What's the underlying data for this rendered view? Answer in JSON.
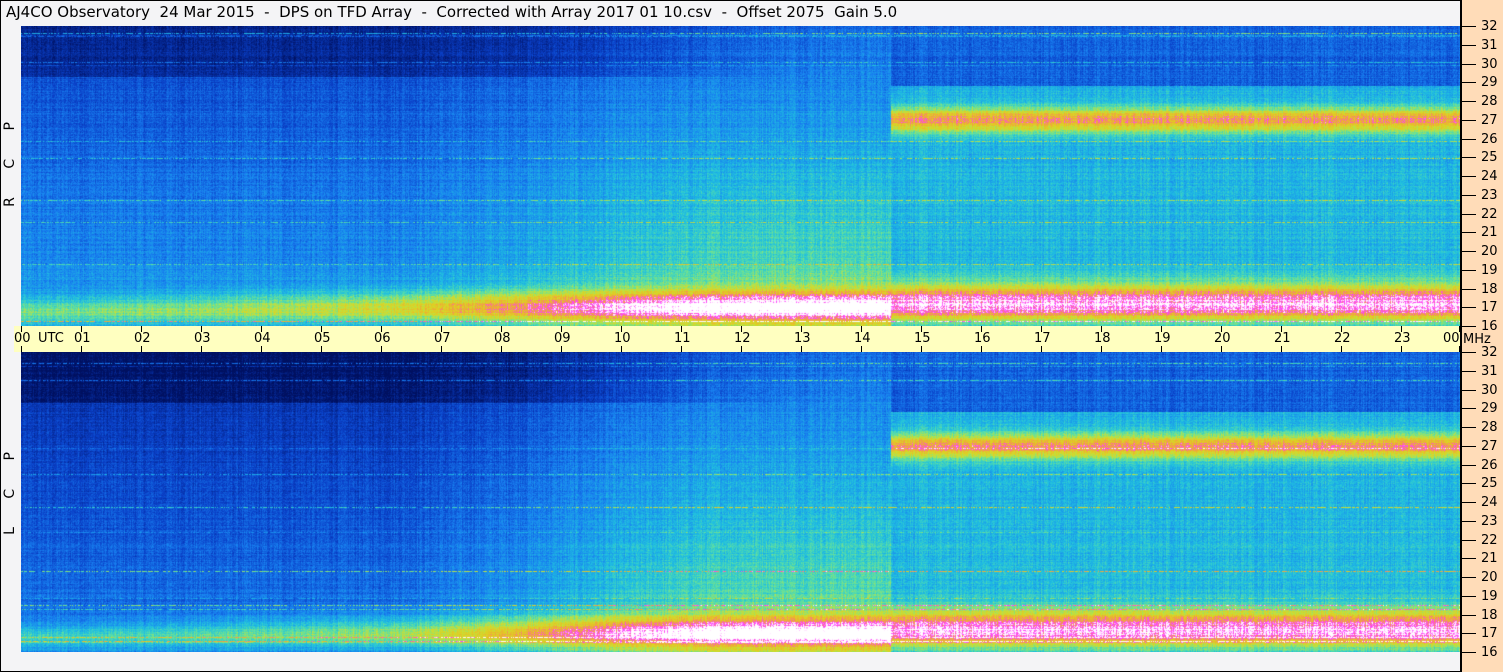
{
  "title": "AJ4CO Observatory  24 Mar 2015  -  DPS on TFD Array  -  Corrected with Array 2017 01 10.csv  -  Offset 2075  Gain 5.0",
  "chart_data": {
    "type": "heatmap",
    "panels": [
      {
        "label": "R C P",
        "polarization": "RCP"
      },
      {
        "label": "L C P",
        "polarization": "LCP"
      }
    ],
    "x_axis": {
      "unit_label": "UTC",
      "range_hours": [
        0,
        24
      ],
      "ticks": [
        "00",
        "01",
        "02",
        "03",
        "04",
        "05",
        "06",
        "07",
        "08",
        "09",
        "10",
        "11",
        "12",
        "13",
        "14",
        "15",
        "16",
        "17",
        "18",
        "19",
        "20",
        "21",
        "22",
        "23",
        "00"
      ]
    },
    "y_axis": {
      "unit_label": "MHz",
      "range": [
        16,
        32
      ],
      "ticks": [
        "32",
        "31",
        "30",
        "29",
        "28",
        "27",
        "26",
        "25",
        "24",
        "23",
        "22",
        "21",
        "20",
        "19",
        "18",
        "17",
        "16"
      ]
    },
    "colormap": [
      "#001060",
      "#0a40c8",
      "#1880f0",
      "#20c0e0",
      "#60e0a0",
      "#c0e040",
      "#e0d020",
      "#f0a040",
      "#ff40ff",
      "#ffffff"
    ],
    "features": {
      "strong_interference_bands_MHz": [
        27,
        17.5
      ],
      "band_onset_utc": 14.5
    }
  },
  "colors": {
    "title_bg": "#f4f4f6",
    "time_axis_bg": "#ffffc0",
    "freq_axis_bg": "#ffdcb8"
  }
}
